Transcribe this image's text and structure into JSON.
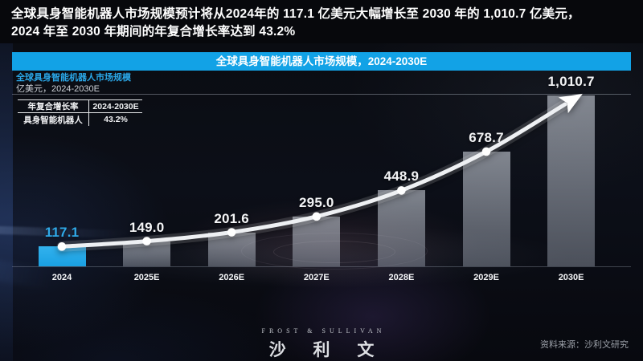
{
  "heading": {
    "line1": "全球具身智能机器人市场规模预计将从2024年的 117.1 亿美元大幅增长至 2030 年的 1,010.7 亿美元，",
    "line2": "2024 年至 2030 年期间的年复合增长率达到 43.2%"
  },
  "panel": {
    "title": "全球具身智能机器人市场规模，2024-2030E",
    "subtitle_name": "全球具身智能机器人市场规模",
    "subtitle_unit": "亿美元，2024-2030E",
    "accent_color": "#12a2e6"
  },
  "cagr_table": {
    "header": [
      "年复合增长率",
      "2024-2030E"
    ],
    "row": [
      "具身智能机器人",
      "43.2%"
    ]
  },
  "chart_data": {
    "type": "bar",
    "title": "全球具身智能机器人市场规模，2024-2030E",
    "ylabel": "亿美元",
    "xlabel": "",
    "ylim": [
      0,
      1050
    ],
    "grid": false,
    "categories": [
      "2024",
      "2025E",
      "2026E",
      "2027E",
      "2028E",
      "2029E",
      "2030E"
    ],
    "values": [
      117.1,
      149.0,
      201.6,
      295.0,
      448.9,
      678.7,
      1010.7
    ],
    "value_labels": [
      "117.1",
      "149.0",
      "201.6",
      "295.0",
      "448.9",
      "678.7",
      "1,010.7"
    ],
    "highlight_index": 0,
    "trend_overlay": {
      "style": "smooth rising line with dots, arrowhead at end",
      "dots_on": [
        "2024",
        "2025E",
        "2026E",
        "2027E",
        "2028E",
        "2029E"
      ],
      "arrow_at": "2030E"
    },
    "colors": {
      "highlight_bar": "#27aae9",
      "bar": "rgba(205,212,224,0.50)",
      "trend_line": "#eef0f3",
      "value_label": "#f3f4f6",
      "highlight_value_label": "#2fa9e8"
    }
  },
  "footer": {
    "logo_en": "FROST & SULLIVAN",
    "logo_cn": "沙 利 文",
    "source": "资料来源：沙利文研究"
  }
}
